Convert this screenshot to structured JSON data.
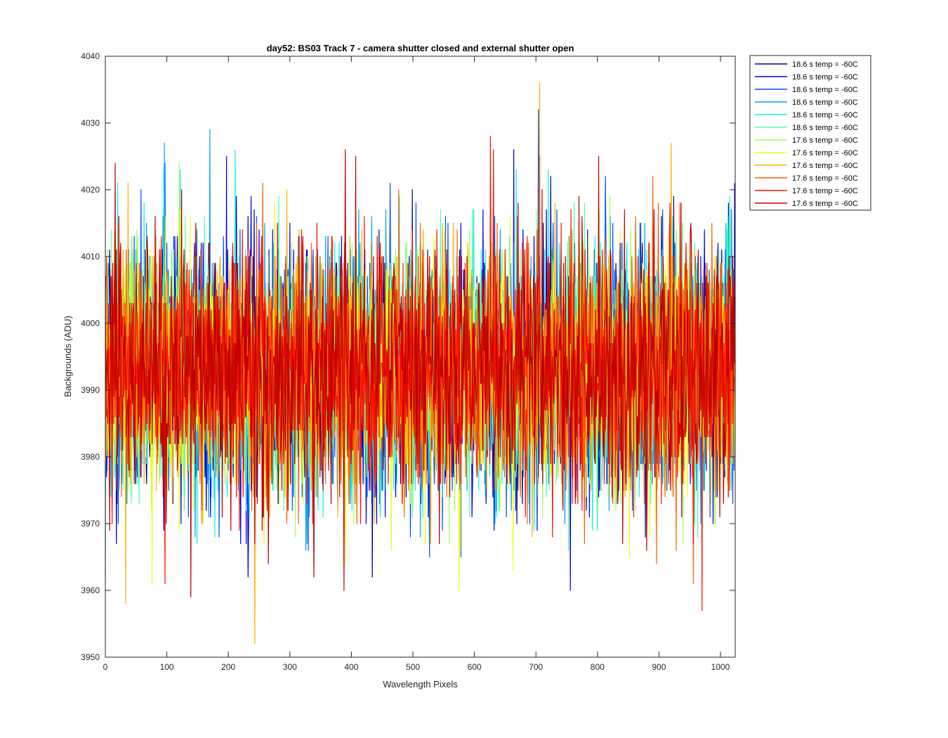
{
  "chart_data": {
    "type": "line",
    "title": "day52: BS03  Track 7 - camera shutter closed and external shutter open",
    "xlabel": "Wavelength Pixels",
    "ylabel": "Backgrounds (ADU)",
    "xlim": [
      0,
      1024
    ],
    "ylim": [
      3950,
      4040
    ],
    "xticks": [
      0,
      100,
      200,
      300,
      400,
      500,
      600,
      700,
      800,
      900,
      1000
    ],
    "yticks": [
      3950,
      3960,
      3970,
      3980,
      3990,
      4000,
      4010,
      4020,
      4030,
      4040
    ],
    "grid": false,
    "legend_position": "outside-top-right",
    "noise": {
      "mean": 3993,
      "std": 9,
      "min": 3952,
      "max": 4036,
      "points_per_series": 1024
    },
    "peaks": [
      {
        "series": 2,
        "x": 704,
        "y": 4032
      },
      {
        "series": 8,
        "x": 706,
        "y": 4036
      },
      {
        "series": 3,
        "x": 170,
        "y": 4029
      },
      {
        "series": 3,
        "x": 96,
        "y": 4027
      },
      {
        "series": 10,
        "x": 626,
        "y": 4028
      },
      {
        "series": 8,
        "x": 920,
        "y": 4027
      },
      {
        "series": 11,
        "x": 407,
        "y": 4025
      },
      {
        "series": 1,
        "x": 197,
        "y": 4025
      },
      {
        "series": 8,
        "x": 243,
        "y": 3952
      },
      {
        "series": 8,
        "x": 33,
        "y": 3958
      },
      {
        "series": 10,
        "x": 970,
        "y": 3957
      },
      {
        "series": 11,
        "x": 139,
        "y": 3959
      },
      {
        "series": 1,
        "x": 232,
        "y": 3962
      },
      {
        "series": 3,
        "x": 0,
        "y": 3962
      },
      {
        "series": 10,
        "x": 97,
        "y": 3961
      }
    ],
    "series": [
      {
        "name": "18.6 s temp = -60C",
        "color": "#00008f"
      },
      {
        "name": "18.6 s temp = -60C",
        "color": "#0000e0"
      },
      {
        "name": "18.6 s temp = -60C",
        "color": "#0050ff"
      },
      {
        "name": "18.6 s temp = -60C",
        "color": "#00a0ff"
      },
      {
        "name": "18.6 s temp = -60C",
        "color": "#10efef"
      },
      {
        "name": "18.6 s temp = -60C",
        "color": "#50ffaf"
      },
      {
        "name": "17.6 s temp = -60C",
        "color": "#a0ff60"
      },
      {
        "name": "17.6 s temp = -60C",
        "color": "#efff10"
      },
      {
        "name": "17.6 s temp = -60C",
        "color": "#ffaf00"
      },
      {
        "name": "17.6 s temp = -60C",
        "color": "#ff6000"
      },
      {
        "name": "17.6 s temp = -60C",
        "color": "#ff1000"
      },
      {
        "name": "17.6 s temp = -60C",
        "color": "#bf0000"
      }
    ]
  }
}
